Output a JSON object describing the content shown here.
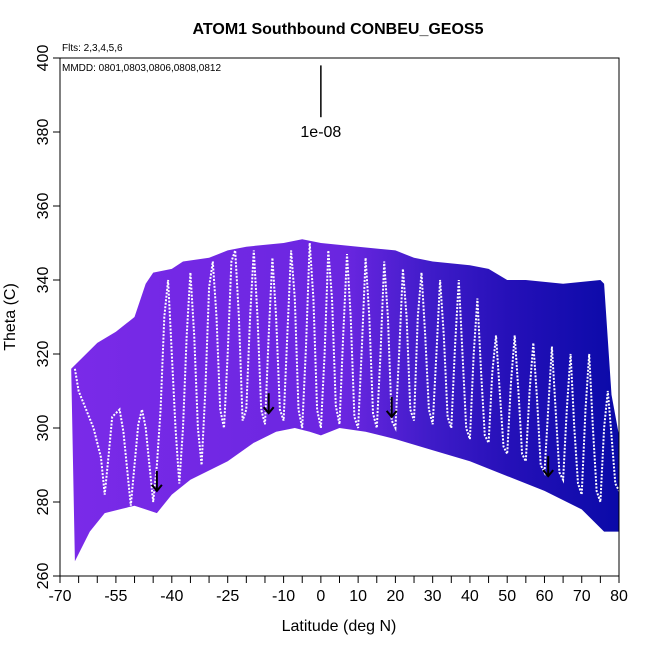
{
  "chart_data": {
    "type": "heatmap",
    "title": "ATOM1 Southbound CONBEU_GEOS5",
    "flights_label": "Flts: 2,3,4,5,6",
    "dates_label": "MMDD: 0801,0803,0806,0808,0812",
    "xlabel": "Latitude (deg N)",
    "ylabel": "Theta (C)",
    "xlim": [
      -70,
      80
    ],
    "ylim": [
      260,
      400
    ],
    "x_ticks": [
      -70,
      -55,
      -40,
      -25,
      -10,
      0,
      10,
      20,
      30,
      40,
      50,
      60,
      70,
      80
    ],
    "x_tick_labels": [
      "-70",
      "-55",
      "-40",
      "-25",
      "-10",
      "0",
      "10",
      "20",
      "30",
      "40",
      "50",
      "60",
      "70",
      "80"
    ],
    "x_minor_ticks": [
      -65,
      -60,
      -50,
      -45,
      -35,
      -30,
      -20,
      -15,
      -5,
      5,
      15,
      25,
      35,
      45,
      55,
      65,
      75
    ],
    "y_ticks": [
      260,
      280,
      300,
      320,
      340,
      360,
      380,
      400
    ],
    "y_tick_labels": [
      "260",
      "280",
      "300",
      "320",
      "340",
      "360",
      "380",
      "400"
    ],
    "scale_label": "1e-08",
    "scale_bar": {
      "lat": 0,
      "theta_bottom": 384,
      "theta_top": 398
    },
    "color_low": "#7a2ae8",
    "color_high": "#0a0aa8",
    "lower_boundary": [
      [
        -66,
        264
      ],
      [
        -62,
        272
      ],
      [
        -58,
        277
      ],
      [
        -50,
        279
      ],
      [
        -44,
        277
      ],
      [
        -40,
        282
      ],
      [
        -35,
        286
      ],
      [
        -25,
        291
      ],
      [
        -18,
        296
      ],
      [
        -12,
        299
      ],
      [
        -7,
        300
      ],
      [
        -3,
        299
      ],
      [
        0,
        298
      ],
      [
        5,
        300
      ],
      [
        12,
        299
      ],
      [
        20,
        297
      ],
      [
        30,
        294
      ],
      [
        40,
        291
      ],
      [
        50,
        287
      ],
      [
        60,
        283
      ],
      [
        70,
        278
      ],
      [
        76,
        272
      ],
      [
        80,
        272
      ]
    ],
    "upper_boundary": [
      [
        -67,
        316
      ],
      [
        -60,
        323
      ],
      [
        -55,
        326
      ],
      [
        -50,
        330
      ],
      [
        -47,
        339
      ],
      [
        -45,
        342
      ],
      [
        -40,
        343
      ],
      [
        -37,
        345
      ],
      [
        -30,
        346
      ],
      [
        -25,
        348
      ],
      [
        -20,
        349
      ],
      [
        -10,
        350
      ],
      [
        -5,
        351
      ],
      [
        0,
        350
      ],
      [
        10,
        349
      ],
      [
        20,
        348
      ],
      [
        25,
        346
      ],
      [
        30,
        345
      ],
      [
        40,
        344
      ],
      [
        45,
        343
      ],
      [
        50,
        340
      ],
      [
        55,
        340
      ],
      [
        65,
        339
      ],
      [
        75,
        340
      ],
      [
        76,
        339
      ],
      [
        78,
        309
      ],
      [
        80,
        298
      ]
    ],
    "flight_arrows": [
      {
        "lat": -44,
        "theta": 283
      },
      {
        "lat": -14,
        "theta": 304
      },
      {
        "lat": 19,
        "theta": 303
      },
      {
        "lat": 61,
        "theta": 287
      }
    ],
    "profile_trace": [
      [
        -66,
        316
      ],
      [
        -65,
        310
      ],
      [
        -63,
        305
      ],
      [
        -61,
        300
      ],
      [
        -59,
        292
      ],
      [
        -58,
        282
      ],
      [
        -57,
        292
      ],
      [
        -56,
        303
      ],
      [
        -54,
        305
      ],
      [
        -53,
        299
      ],
      [
        -52,
        289
      ],
      [
        -51,
        279
      ],
      [
        -50,
        290
      ],
      [
        -49,
        301
      ],
      [
        -48,
        305
      ],
      [
        -47,
        300
      ],
      [
        -46,
        290
      ],
      [
        -45,
        280
      ],
      [
        -44,
        290
      ],
      [
        -43,
        305
      ],
      [
        -42,
        330
      ],
      [
        -41,
        340
      ],
      [
        -40,
        320
      ],
      [
        -39,
        300
      ],
      [
        -38,
        285
      ],
      [
        -37,
        300
      ],
      [
        -36,
        325
      ],
      [
        -35,
        342
      ],
      [
        -34,
        325
      ],
      [
        -33,
        300
      ],
      [
        -32,
        290
      ],
      [
        -31,
        310
      ],
      [
        -30,
        338
      ],
      [
        -29,
        345
      ],
      [
        -28,
        330
      ],
      [
        -27,
        305
      ],
      [
        -26,
        300
      ],
      [
        -25,
        320
      ],
      [
        -24,
        345
      ],
      [
        -23,
        348
      ],
      [
        -22,
        330
      ],
      [
        -21,
        302
      ],
      [
        -20,
        305
      ],
      [
        -19,
        330
      ],
      [
        -18,
        348
      ],
      [
        -17,
        330
      ],
      [
        -16,
        305
      ],
      [
        -15,
        301
      ],
      [
        -14,
        325
      ],
      [
        -13,
        346
      ],
      [
        -12,
        330
      ],
      [
        -11,
        305
      ],
      [
        -10,
        302
      ],
      [
        -9,
        325
      ],
      [
        -8,
        348
      ],
      [
        -7,
        335
      ],
      [
        -6,
        305
      ],
      [
        -5,
        300
      ],
      [
        -4,
        322
      ],
      [
        -3,
        350
      ],
      [
        -2,
        335
      ],
      [
        -1,
        305
      ],
      [
        0,
        300
      ],
      [
        1,
        320
      ],
      [
        2,
        348
      ],
      [
        3,
        335
      ],
      [
        4,
        306
      ],
      [
        5,
        301
      ],
      [
        6,
        325
      ],
      [
        7,
        347
      ],
      [
        8,
        330
      ],
      [
        9,
        303
      ],
      [
        10,
        300
      ],
      [
        11,
        322
      ],
      [
        12,
        346
      ],
      [
        13,
        330
      ],
      [
        14,
        304
      ],
      [
        15,
        300
      ],
      [
        16,
        320
      ],
      [
        17,
        345
      ],
      [
        18,
        330
      ],
      [
        19,
        302
      ],
      [
        20,
        300
      ],
      [
        21,
        320
      ],
      [
        22,
        343
      ],
      [
        23,
        330
      ],
      [
        24,
        305
      ],
      [
        25,
        302
      ],
      [
        26,
        330
      ],
      [
        27,
        342
      ],
      [
        28,
        325
      ],
      [
        29,
        305
      ],
      [
        30,
        301
      ],
      [
        31,
        320
      ],
      [
        32,
        340
      ],
      [
        33,
        325
      ],
      [
        34,
        303
      ],
      [
        35,
        300
      ],
      [
        36,
        322
      ],
      [
        37,
        340
      ],
      [
        38,
        320
      ],
      [
        39,
        300
      ],
      [
        40,
        297
      ],
      [
        41,
        320
      ],
      [
        42,
        335
      ],
      [
        43,
        315
      ],
      [
        44,
        298
      ],
      [
        45,
        296
      ],
      [
        46,
        315
      ],
      [
        47,
        325
      ],
      [
        48,
        310
      ],
      [
        49,
        295
      ],
      [
        50,
        293
      ],
      [
        51,
        312
      ],
      [
        52,
        325
      ],
      [
        53,
        310
      ],
      [
        54,
        293
      ],
      [
        55,
        291
      ],
      [
        56,
        310
      ],
      [
        57,
        323
      ],
      [
        58,
        308
      ],
      [
        59,
        290
      ],
      [
        60,
        288
      ],
      [
        61,
        305
      ],
      [
        62,
        322
      ],
      [
        63,
        305
      ],
      [
        64,
        288
      ],
      [
        65,
        286
      ],
      [
        66,
        305
      ],
      [
        67,
        320
      ],
      [
        68,
        300
      ],
      [
        69,
        285
      ],
      [
        70,
        282
      ],
      [
        71,
        305
      ],
      [
        72,
        320
      ],
      [
        73,
        300
      ],
      [
        74,
        283
      ],
      [
        75,
        280
      ],
      [
        76,
        300
      ],
      [
        77,
        310
      ],
      [
        78,
        298
      ],
      [
        79,
        285
      ],
      [
        80,
        283
      ]
    ]
  }
}
